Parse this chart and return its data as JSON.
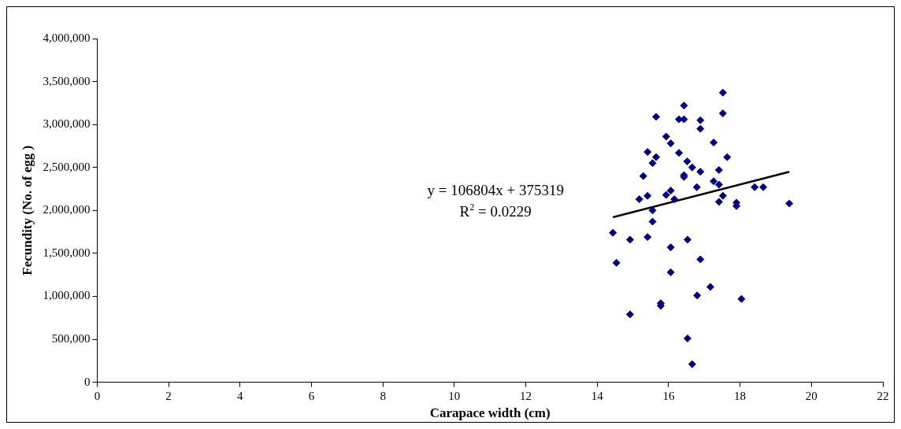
{
  "chart_data": {
    "type": "scatter",
    "xlabel": "Carapace width (cm)",
    "ylabel": "Fecundity (No. of egg )",
    "xlim": [
      0,
      22
    ],
    "xticks": [
      0,
      2,
      4,
      6,
      8,
      10,
      12,
      14,
      16,
      18,
      20,
      22
    ],
    "ylim": [
      0,
      4000000
    ],
    "yticks": [
      {
        "value": 0,
        "label": "0"
      },
      {
        "value": 500000,
        "label": "500,000"
      },
      {
        "value": 1000000,
        "label": "1,000,000"
      },
      {
        "value": 1500000,
        "label": "1,500,000"
      },
      {
        "value": 2000000,
        "label": "2,000,000"
      },
      {
        "value": 2500000,
        "label": "2,500,000"
      },
      {
        "value": 3000000,
        "label": "3,000,000"
      },
      {
        "value": 3500000,
        "label": "3,500,000"
      },
      {
        "value": 4000000,
        "label": "4,000,000"
      }
    ],
    "grid": false,
    "legend": false,
    "series": [
      {
        "type": "scatter",
        "marker": "diamond",
        "color": "#000080",
        "x": [
          17.52,
          16.43,
          17.52,
          15.65,
          16.29,
          16.43,
          16.89,
          16.89,
          15.93,
          16.06,
          17.26,
          15.41,
          15.65,
          16.29,
          17.64,
          15.55,
          16.52,
          16.66,
          16.89,
          17.41,
          15.29,
          16.43,
          16.43,
          17.26,
          17.41,
          16.79,
          18.41,
          18.65,
          15.18,
          15.41,
          15.93,
          16.06,
          16.16,
          17.52,
          17.41,
          17.9,
          17.9,
          19.38,
          15.55,
          15.55,
          14.44,
          14.92,
          15.41,
          16.06,
          16.53,
          14.54,
          16.89,
          16.06,
          17.17,
          16.8,
          15.78,
          15.78,
          18.04,
          14.92,
          16.53,
          16.66
        ],
        "values": [
          3370000,
          3220000,
          3130000,
          3090000,
          3060000,
          3060000,
          3050000,
          2950000,
          2860000,
          2780000,
          2790000,
          2680000,
          2620000,
          2670000,
          2620000,
          2550000,
          2570000,
          2500000,
          2450000,
          2470000,
          2400000,
          2410000,
          2390000,
          2340000,
          2300000,
          2270000,
          2270000,
          2270000,
          2130000,
          2170000,
          2180000,
          2230000,
          2130000,
          2170000,
          2100000,
          2090000,
          2050000,
          2080000,
          2000000,
          1870000,
          1740000,
          1660000,
          1690000,
          1570000,
          1660000,
          1390000,
          1430000,
          1280000,
          1110000,
          1010000,
          920000,
          890000,
          970000,
          790000,
          510000,
          210000
        ]
      },
      {
        "type": "line",
        "marker": "none",
        "color": "#000000",
        "x": [
          14.44,
          19.38
        ],
        "values": [
          1920000,
          2450000
        ]
      }
    ],
    "annotations": [
      "y = 106804x + 375319",
      "R$^{2}$ = 0.0229"
    ]
  }
}
